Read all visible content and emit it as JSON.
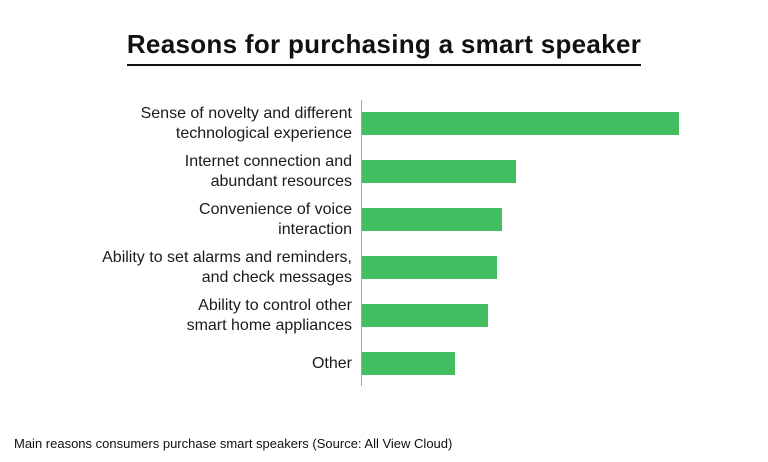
{
  "title": "Reasons for purchasing a smart speaker",
  "footnote": "Main reasons consumers purchase smart speakers (Source: All View Cloud)",
  "colors": {
    "bar": "#42be60",
    "axis": "#a6a6a6",
    "text": "#111111",
    "background": "#ffffff"
  },
  "chart_data": {
    "type": "bar",
    "orientation": "horizontal",
    "title": "Reasons for purchasing a smart speaker",
    "categories": [
      "Sense of novelty and different\ntechnological experience",
      "Internet connection and\nabundant resources",
      "Convenience of voice\ninteraction",
      "Ability to set alarms and reminders,\nand check messages",
      "Ability to control other\nsmart home appliances",
      "Other"
    ],
    "values": [
      68,
      33,
      30,
      29,
      27,
      20
    ],
    "values_note": "estimated from bar lengths; no numeric axis labels shown",
    "xlabel": "",
    "ylabel": "",
    "xlim": [
      0,
      85
    ],
    "grid": false,
    "legend": false,
    "bar_color": "#42be60",
    "source_note": "Main reasons consumers purchase smart speakers (Source: All View Cloud)"
  }
}
